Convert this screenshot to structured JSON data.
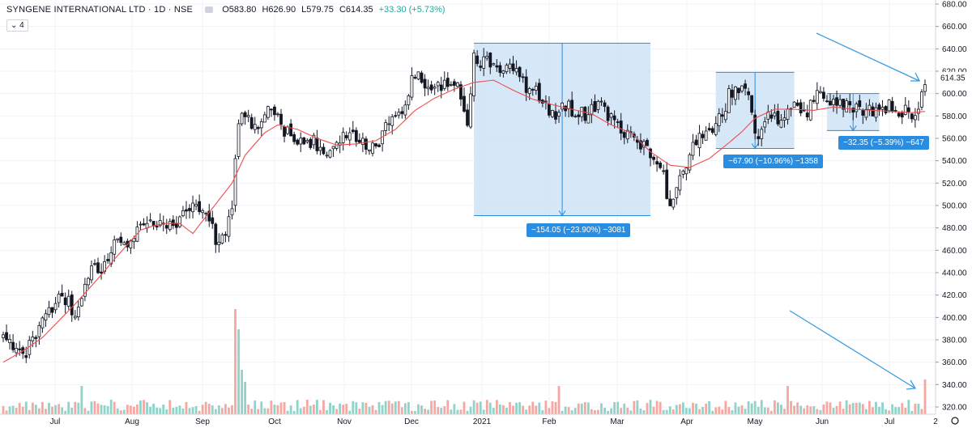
{
  "header": {
    "symbol": "SYNGENE INTERNATIONAL LTD · 1D · NSE",
    "open": "O583.80",
    "high": "H626.90",
    "low": "L579.75",
    "close": "C614.35",
    "change": "+33.30 (+5.73%)",
    "indicator_count": "4"
  },
  "colors": {
    "up_candle": "#ffffff",
    "down_candle": "#131722",
    "ma_line": "#ee4d4d",
    "box_fill": "#cfe3f6",
    "box_stroke": "#2a8de0",
    "vol_up": "#8fd3c9",
    "vol_down": "#f5a7a2",
    "arrow": "#3a9be0"
  },
  "chart_data": {
    "type": "candlestick",
    "title": "SYNGENE INTERNATIONAL LTD · 1D · NSE",
    "y_axis": {
      "ticks": [
        "680.00",
        "660.00",
        "640.00",
        "620.00",
        "600.00",
        "580.00",
        "560.00",
        "540.00",
        "520.00",
        "500.00",
        "480.00",
        "460.00",
        "440.00",
        "420.00",
        "400.00",
        "380.00",
        "360.00",
        "340.00",
        "320.00"
      ],
      "range": [
        316,
        684
      ],
      "last_price": "614.35"
    },
    "x_axis": {
      "ticks": [
        "Jul",
        "Aug",
        "Sep",
        "Oct",
        "Nov",
        "Dec",
        "2021",
        "Feb",
        "Mar",
        "Apr",
        "May",
        "Jun",
        "Jul",
        "2"
      ]
    },
    "close_path": [
      [
        0,
        380
      ],
      [
        6,
        365
      ],
      [
        12,
        395
      ],
      [
        18,
        420
      ],
      [
        22,
        405
      ],
      [
        26,
        440
      ],
      [
        30,
        445
      ],
      [
        34,
        470
      ],
      [
        38,
        462
      ],
      [
        42,
        480
      ],
      [
        46,
        488
      ],
      [
        50,
        483
      ],
      [
        54,
        488
      ],
      [
        58,
        505
      ],
      [
        62,
        490
      ],
      [
        66,
        465
      ],
      [
        68,
        478
      ],
      [
        70,
        500
      ],
      [
        72,
        570
      ],
      [
        74,
        582
      ],
      [
        78,
        565
      ],
      [
        82,
        592
      ],
      [
        86,
        568
      ],
      [
        90,
        560
      ],
      [
        96,
        555
      ],
      [
        100,
        545
      ],
      [
        104,
        568
      ],
      [
        108,
        560
      ],
      [
        114,
        548
      ],
      [
        118,
        575
      ],
      [
        122,
        588
      ],
      [
        126,
        620
      ],
      [
        130,
        608
      ],
      [
        134,
        605
      ],
      [
        138,
        612
      ],
      [
        140,
        598
      ],
      [
        142,
        575
      ],
      [
        144,
        632
      ],
      [
        148,
        628
      ],
      [
        152,
        615
      ],
      [
        156,
        625
      ],
      [
        160,
        605
      ],
      [
        164,
        600
      ],
      [
        168,
        580
      ],
      [
        172,
        588
      ],
      [
        178,
        582
      ],
      [
        184,
        590
      ],
      [
        186,
        575
      ],
      [
        192,
        562
      ],
      [
        198,
        548
      ],
      [
        202,
        525
      ],
      [
        204,
        495
      ],
      [
        206,
        520
      ],
      [
        210,
        545
      ],
      [
        214,
        565
      ],
      [
        218,
        568
      ],
      [
        222,
        598
      ],
      [
        226,
        610
      ],
      [
        228,
        595
      ],
      [
        230,
        560
      ],
      [
        234,
        585
      ],
      [
        238,
        575
      ],
      [
        242,
        588
      ],
      [
        246,
        582
      ],
      [
        248,
        600
      ],
      [
        252,
        590
      ],
      [
        256,
        588
      ],
      [
        262,
        585
      ],
      [
        266,
        582
      ],
      [
        270,
        588
      ],
      [
        276,
        584
      ],
      [
        280,
        580
      ],
      [
        282,
        614
      ]
    ],
    "ma_path": [
      [
        0,
        360
      ],
      [
        6,
        370
      ],
      [
        12,
        382
      ],
      [
        18,
        400
      ],
      [
        22,
        412
      ],
      [
        26,
        425
      ],
      [
        30,
        438
      ],
      [
        34,
        452
      ],
      [
        38,
        465
      ],
      [
        42,
        478
      ],
      [
        46,
        482
      ],
      [
        50,
        484
      ],
      [
        54,
        484
      ],
      [
        58,
        475
      ],
      [
        62,
        490
      ],
      [
        66,
        505
      ],
      [
        70,
        520
      ],
      [
        74,
        545
      ],
      [
        80,
        565
      ],
      [
        84,
        572
      ],
      [
        90,
        568
      ],
      [
        96,
        560
      ],
      [
        102,
        554
      ],
      [
        108,
        555
      ],
      [
        114,
        558
      ],
      [
        120,
        568
      ],
      [
        126,
        585
      ],
      [
        132,
        596
      ],
      [
        138,
        604
      ],
      [
        144,
        610
      ],
      [
        150,
        612
      ],
      [
        156,
        603
      ],
      [
        162,
        595
      ],
      [
        168,
        590
      ],
      [
        174,
        586
      ],
      [
        180,
        582
      ],
      [
        186,
        572
      ],
      [
        192,
        565
      ],
      [
        198,
        548
      ],
      [
        204,
        536
      ],
      [
        210,
        534
      ],
      [
        216,
        542
      ],
      [
        222,
        556
      ],
      [
        226,
        566
      ],
      [
        230,
        578
      ],
      [
        236,
        586
      ],
      [
        242,
        586
      ],
      [
        248,
        585
      ],
      [
        254,
        588
      ],
      [
        260,
        586
      ],
      [
        266,
        585
      ],
      [
        272,
        584
      ],
      [
        278,
        583
      ],
      [
        282,
        584
      ]
    ],
    "measure_boxes": [
      {
        "label": "−154.05 (−23.90%) −3081",
        "x0": 144,
        "x1": 198,
        "top": 645,
        "bottom": 491
      },
      {
        "label": "−67.90 (−10.96%) −1358",
        "x0": 218,
        "x1": 242,
        "top": 619,
        "bottom": 551
      },
      {
        "label": "−32.35 (−5.39%) −647",
        "x0": 252,
        "x1": 268,
        "top": 600,
        "bottom": 567
      }
    ],
    "bar_count": 283
  }
}
